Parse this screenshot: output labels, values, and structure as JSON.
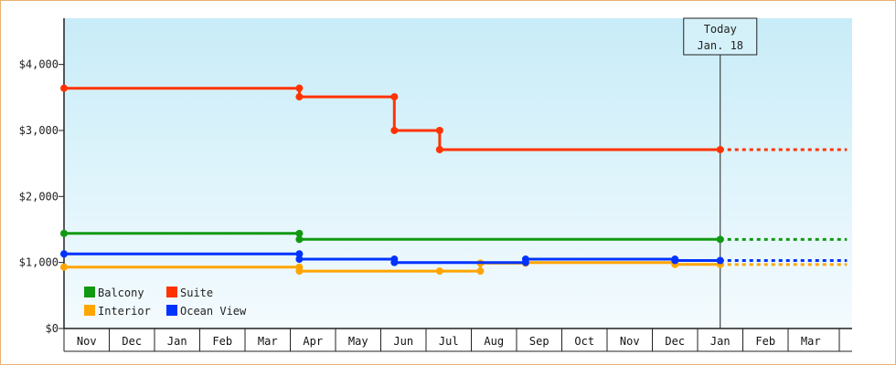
{
  "chart_data": {
    "type": "line",
    "step": true,
    "title": "",
    "xlabel": "",
    "ylabel": "",
    "ylim": [
      0,
      4700
    ],
    "y_ticks": [
      0,
      1000,
      2000,
      3000,
      4000
    ],
    "y_tick_labels": [
      "$0",
      "$1,000",
      "$2,000",
      "$3,000",
      "$4,000"
    ],
    "x_ticks": [
      "Nov",
      "Dec",
      "Jan",
      "Feb",
      "Mar",
      "Apr",
      "May",
      "Jun",
      "Jul",
      "Aug",
      "Sep",
      "Oct",
      "Nov",
      "Dec",
      "Jan",
      "Feb",
      "Mar"
    ],
    "grid": false,
    "legend_placement": "bottom-left",
    "today_marker": {
      "line1": "Today",
      "line2": "Jan. 18",
      "x": 14.5
    },
    "series": [
      {
        "name": "Balcony",
        "color": "#119911",
        "points": [
          [
            0,
            1440
          ],
          [
            5.2,
            1440
          ],
          [
            5.2,
            1350
          ],
          [
            14.5,
            1350
          ]
        ],
        "projected_to": 17.3
      },
      {
        "name": "Suite",
        "color": "#ff3300",
        "points": [
          [
            0,
            3640
          ],
          [
            5.2,
            3640
          ],
          [
            5.2,
            3510
          ],
          [
            7.3,
            3510
          ],
          [
            7.3,
            3000
          ],
          [
            8.3,
            3000
          ],
          [
            8.3,
            2710
          ],
          [
            14.5,
            2710
          ]
        ],
        "projected_to": 17.3
      },
      {
        "name": "Interior",
        "color": "#ffa500",
        "points": [
          [
            0,
            930
          ],
          [
            5.2,
            930
          ],
          [
            5.2,
            870
          ],
          [
            8.3,
            870
          ],
          [
            9.2,
            870
          ],
          [
            9.2,
            990
          ],
          [
            10.2,
            990
          ],
          [
            10.2,
            1000
          ],
          [
            13.5,
            1000
          ],
          [
            13.5,
            970
          ],
          [
            14.5,
            970
          ]
        ],
        "projected_to": 17.3
      },
      {
        "name": "Ocean View",
        "color": "#0033ff",
        "points": [
          [
            0,
            1130
          ],
          [
            5.2,
            1130
          ],
          [
            5.2,
            1050
          ],
          [
            7.3,
            1050
          ],
          [
            7.3,
            1000
          ],
          [
            10.2,
            1000
          ],
          [
            10.2,
            1050
          ],
          [
            13.5,
            1050
          ],
          [
            13.5,
            1030
          ],
          [
            14.5,
            1030
          ]
        ],
        "projected_to": 17.3
      }
    ]
  }
}
